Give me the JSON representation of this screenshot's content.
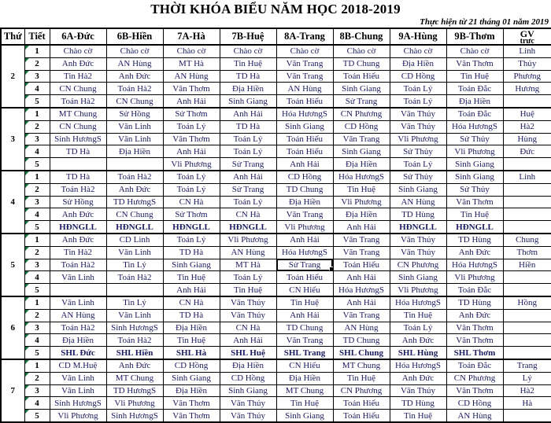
{
  "title": "THỜI KHÓA BIỂU NĂM HỌC 2018-2019",
  "subtitle": "Thực hiện từ 21 tháng 01 năm 2019",
  "colors": {
    "cell_text": "#1b1b5e",
    "error_triangle_green": "#1e7145",
    "grid": "#000000"
  },
  "table": {
    "headers": {
      "day": "Thứ",
      "period": "Tiết",
      "classes": [
        "6A-Đức",
        "6B-Hiền",
        "7A-Hà",
        "7B-Huệ",
        "8A-Trang",
        "8B-Chung",
        "9A-Hùng",
        "9B-Thơm"
      ],
      "gv": "GV",
      "gv_sub": "trực"
    },
    "bold_prefixes": [
      "HĐNGLL",
      "SHL"
    ],
    "selected_cell": {
      "day_index": 3,
      "period_index": 2,
      "class_index": 4,
      "value": "Sử Trang"
    },
    "days": [
      {
        "label": "2",
        "periods": [
          {
            "num": "1",
            "subjects": [
              "Chào cờ",
              "Chào cờ",
              "Chào cờ",
              "Chào cờ",
              "Chào cờ",
              "Chào cờ",
              "Chào cờ",
              "Chào cờ"
            ],
            "gv": "Linh"
          },
          {
            "num": "2",
            "subjects": [
              "Anh Đức",
              "AN Hùng",
              "MT Hà",
              "Tin Huệ",
              "Văn Trang",
              "TD Chung",
              "Địa Hiền",
              "Văn Thơm"
            ],
            "gv": "Thủy"
          },
          {
            "num": "3",
            "subjects": [
              "Tin Hà2",
              "Anh Đức",
              "AN Hùng",
              "TD Hà",
              "Văn Trang",
              "Toán Hiếu",
              "CD Hồng",
              "Tin Huệ"
            ],
            "gv": "Phương"
          },
          {
            "num": "4",
            "subjects": [
              "CN Chung",
              "Toán Hà2",
              "Văn Thơm",
              "Địa Hiền",
              "AN Hùng",
              "Sinh Giang",
              "Toán Lý",
              "Toán Đắc"
            ],
            "gv": "Hương"
          },
          {
            "num": "5",
            "subjects": [
              "Toán Hà2",
              "CN Chung",
              "Anh Hải",
              "Sinh Giang",
              "Toán Hiếu",
              "Sử Trang",
              "Toán Lý",
              "Địa Hiền"
            ],
            "gv": ""
          }
        ]
      },
      {
        "label": "3",
        "periods": [
          {
            "num": "1",
            "subjects": [
              "MT Chung",
              "Sử Hồng",
              "Sử Thơm",
              "Anh Hải",
              "Hóa HươngS",
              "CN Phương",
              "Văn Thủy",
              "Toán Đắc"
            ],
            "gv": "Huệ"
          },
          {
            "num": "2",
            "subjects": [
              "CN Chung",
              "Văn Linh",
              "Toán Lý",
              "TD Hà",
              "Sinh Giang",
              "CD Hồng",
              "Văn Thủy",
              "Hóa HươngS"
            ],
            "gv": "Hà2"
          },
          {
            "num": "3",
            "subjects": [
              "Sinh HươngS",
              "Văn Linh",
              "Văn Thơm",
              "Toán Lý",
              "Toán Hiếu",
              "Văn Trang",
              "Vli Phương",
              "Sử Thủy"
            ],
            "gv": "Hùng"
          },
          {
            "num": "4",
            "subjects": [
              "TD Hà",
              "Địa Hiền",
              "Anh Hải",
              "Toán Lý",
              "Toán Hiếu",
              "Sinh Giang",
              "Sử Thủy",
              "Vli Phương"
            ],
            "gv": "Đức"
          },
          {
            "num": "5",
            "subjects": [
              "",
              "",
              "Vli Phương",
              "Sử Trang",
              "Anh Hải",
              "Địa Hiền",
              "Toán Lý",
              "Sinh Giang"
            ],
            "gv": ""
          }
        ]
      },
      {
        "label": "4",
        "periods": [
          {
            "num": "1",
            "subjects": [
              "TD Hà",
              "Toán Hà2",
              "Toán Lý",
              "Anh Hải",
              "CD Hồng",
              "Hóa HươngS",
              "Sử Thủy",
              "Sinh Giang"
            ],
            "gv": "Linh"
          },
          {
            "num": "2",
            "subjects": [
              "Toán Hà2",
              "Anh Đức",
              "Toán Lý",
              "Sử Trang",
              "TD Chung",
              "Tin Huệ",
              "Sinh Giang",
              "Sử Thủy"
            ],
            "gv": ""
          },
          {
            "num": "3",
            "subjects": [
              "Sử Hồng",
              "TD HươngS",
              "CN Hà",
              "Toán Lý",
              "Địa Hiền",
              "Vli Phương",
              "AN Hùng",
              "Văn Thơm"
            ],
            "gv": ""
          },
          {
            "num": "4",
            "subjects": [
              "Anh Đức",
              "CN Chung",
              "Sử Thơm",
              "CN Hà",
              "Văn Trang",
              "Địa Hiền",
              "TD Hùng",
              "Tin Huệ"
            ],
            "gv": ""
          },
          {
            "num": "5",
            "subjects": [
              "HĐNGLL",
              "HĐNGLL",
              "HĐNGLL",
              "HĐNGLL",
              "Vli Phương",
              "Anh Hải",
              "HĐNGLL",
              "HĐNGLL"
            ],
            "gv": ""
          }
        ]
      },
      {
        "label": "5",
        "periods": [
          {
            "num": "1",
            "subjects": [
              "Anh Đức",
              "CD Linh",
              "Toán Lý",
              "Vli Phương",
              "Anh Hải",
              "Văn Trang",
              "Văn Thủy",
              "TD Hùng"
            ],
            "gv": "Chung"
          },
          {
            "num": "2",
            "subjects": [
              "Tin Hà2",
              "Văn Linh",
              "TD Hà",
              "AN Hùng",
              "Hóa HươngS",
              "Văn Trang",
              "Văn Thủy",
              "Anh Đức"
            ],
            "gv": "Thơm"
          },
          {
            "num": "3",
            "subjects": [
              "Toán Hà2",
              "Tin Lý",
              "Sinh Giang",
              "MT Hà",
              "Sử Trang",
              "Toán Hiếu",
              "CN Phương",
              "Hóa HươngS"
            ],
            "gv": "Hiền"
          },
          {
            "num": "4",
            "subjects": [
              "Văn Linh",
              "Toán Hà2",
              "Tin Huệ",
              "Toán Lý",
              "Toán Hiếu",
              "Anh Hải",
              "Sinh Giang",
              "Vli Phương"
            ],
            "gv": ""
          },
          {
            "num": "5",
            "subjects": [
              "",
              "",
              "Anh Hải",
              "Tin Huệ",
              "CN Hiếu",
              "Hóa HươngS",
              "Vli Phương",
              "Toán Đắc"
            ],
            "gv": ""
          }
        ]
      },
      {
        "label": "6",
        "periods": [
          {
            "num": "1",
            "subjects": [
              "Văn Linh",
              "Tin Lý",
              "CN Hà",
              "Văn Thủy",
              "Tin Huệ",
              "Anh Hải",
              "Hóa HươngS",
              "TD Hùng"
            ],
            "gv": "Hồng"
          },
          {
            "num": "2",
            "subjects": [
              "AN Hùng",
              "Văn Linh",
              "TD Hà",
              "Văn Thủy",
              "Anh Hải",
              "Văn Trang",
              "Tin Huệ",
              "Anh Đức"
            ],
            "gv": ""
          },
          {
            "num": "3",
            "subjects": [
              "Toán Hà2",
              "Sinh HươngS",
              "Địa Hiền",
              "CN Hà",
              "TD Chung",
              "AN Hùng",
              "Toán Lý",
              "Văn Thơm"
            ],
            "gv": ""
          },
          {
            "num": "4",
            "subjects": [
              "Địa Hiền",
              "Toán Hà2",
              "Tin Huệ",
              "Anh Hải",
              "Văn Trang",
              "TD Chung",
              "Anh Đức",
              "Văn Thơm"
            ],
            "gv": ""
          },
          {
            "num": "5",
            "subjects": [
              "SHL Đức",
              "SHL Hiền",
              "SHL Hà",
              "SHL Huệ",
              "SHL Trang",
              "SHL Chung",
              "SHL Hùng",
              "SHL Thơm"
            ],
            "gv": ""
          }
        ]
      },
      {
        "label": "7",
        "periods": [
          {
            "num": "1",
            "subjects": [
              "CD M.Huệ",
              "Anh Đức",
              "CD Hồng",
              "Địa Hiền",
              "CN Hiếu",
              "MT Chung",
              "Hóa HươngS",
              "Toán Đắc"
            ],
            "gv": "Trang"
          },
          {
            "num": "2",
            "subjects": [
              "Văn Linh",
              "MT Chung",
              "Sinh Giang",
              "CD Hồng",
              "Địa Hiền",
              "Tin Huệ",
              "Anh Đức",
              "CN Phương"
            ],
            "gv": "Lý"
          },
          {
            "num": "3",
            "subjects": [
              "Văn Linh",
              "TD HươngS",
              "Địa Hiền",
              "Sinh Giang",
              "MT Chung",
              "CN Phương",
              "Văn Thủy",
              "Văn Thơm"
            ],
            "gv": "Hà2"
          },
          {
            "num": "4",
            "subjects": [
              "Sinh HươngS",
              "Vli Phương",
              "Văn Thơm",
              "Văn Thủy",
              "Tin Huệ",
              "Toán Hiếu",
              "TD Hùng",
              "CD Hồng"
            ],
            "gv": "Hà"
          },
          {
            "num": "5",
            "subjects": [
              "Vli Phương",
              "Sinh HươngS",
              "Văn Thơm",
              "Văn Thủy",
              "Sinh Giang",
              "Toán Hiếu",
              "Tin Huệ",
              "AN Hùng"
            ],
            "gv": ""
          }
        ]
      }
    ]
  }
}
